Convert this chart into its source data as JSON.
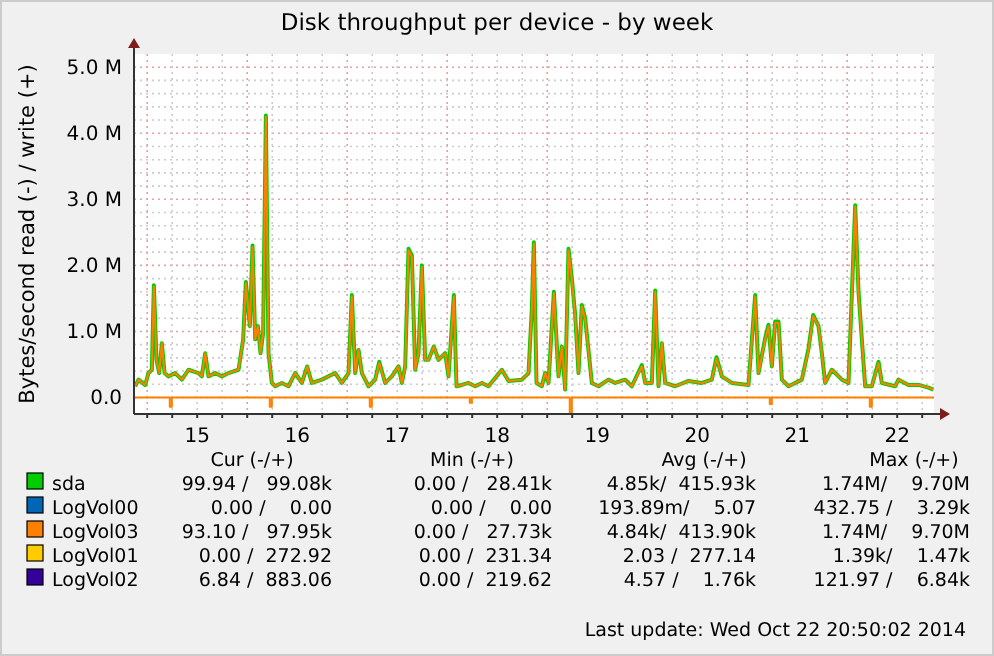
{
  "chart_data": {
    "type": "line",
    "title": "Disk throughput per device - by week",
    "ylabel": "Bytes/second read (-) / write (+)",
    "xlim": [
      "2014-10-14T20:50",
      "2014-10-22T20:50"
    ],
    "xticks": [
      {
        "value": "2014-10-15T00:00",
        "label": null
      },
      {
        "value": "2014-10-15T06:00",
        "label": null
      },
      {
        "value": "2014-10-15T12:00",
        "label": "15"
      },
      {
        "value": "2014-10-15T18:00",
        "label": null
      },
      {
        "value": "2014-10-16T00:00",
        "label": null
      },
      {
        "value": "2014-10-16T06:00",
        "label": null
      },
      {
        "value": "2014-10-16T12:00",
        "label": "16"
      },
      {
        "value": "2014-10-16T18:00",
        "label": null
      },
      {
        "value": "2014-10-17T00:00",
        "label": null
      },
      {
        "value": "2014-10-17T06:00",
        "label": null
      },
      {
        "value": "2014-10-17T12:00",
        "label": "17"
      },
      {
        "value": "2014-10-17T18:00",
        "label": null
      },
      {
        "value": "2014-10-18T00:00",
        "label": null
      },
      {
        "value": "2014-10-18T06:00",
        "label": null
      },
      {
        "value": "2014-10-18T12:00",
        "label": "18"
      },
      {
        "value": "2014-10-18T18:00",
        "label": null
      },
      {
        "value": "2014-10-19T00:00",
        "label": null
      },
      {
        "value": "2014-10-19T06:00",
        "label": null
      },
      {
        "value": "2014-10-19T12:00",
        "label": "19"
      },
      {
        "value": "2014-10-19T18:00",
        "label": null
      },
      {
        "value": "2014-10-20T00:00",
        "label": null
      },
      {
        "value": "2014-10-20T06:00",
        "label": null
      },
      {
        "value": "2014-10-20T12:00",
        "label": "20"
      },
      {
        "value": "2014-10-20T18:00",
        "label": null
      },
      {
        "value": "2014-10-21T00:00",
        "label": null
      },
      {
        "value": "2014-10-21T06:00",
        "label": null
      },
      {
        "value": "2014-10-21T12:00",
        "label": "21"
      },
      {
        "value": "2014-10-21T18:00",
        "label": null
      },
      {
        "value": "2014-10-22T00:00",
        "label": null
      },
      {
        "value": "2014-10-22T06:00",
        "label": null
      },
      {
        "value": "2014-10-22T12:00",
        "label": "22"
      },
      {
        "value": "2014-10-22T18:00",
        "label": null
      }
    ],
    "ylim": [
      -0.25,
      5.2
    ],
    "yticks": [
      {
        "value": 0,
        "label": "0.0"
      },
      {
        "value": 0.2,
        "label": null
      },
      {
        "value": 0.4,
        "label": null
      },
      {
        "value": 0.6,
        "label": null
      },
      {
        "value": 0.8,
        "label": null
      },
      {
        "value": 1,
        "label": "1.0 M"
      },
      {
        "value": 1.2,
        "label": null
      },
      {
        "value": 1.4,
        "label": null
      },
      {
        "value": 1.6,
        "label": null
      },
      {
        "value": 1.8,
        "label": null
      },
      {
        "value": 2,
        "label": "2.0 M"
      },
      {
        "value": 2.2,
        "label": null
      },
      {
        "value": 2.4,
        "label": null
      },
      {
        "value": 2.6,
        "label": null
      },
      {
        "value": 2.8,
        "label": null
      },
      {
        "value": 3,
        "label": "3.0 M"
      },
      {
        "value": 3.2,
        "label": null
      },
      {
        "value": 3.4,
        "label": null
      },
      {
        "value": 3.6,
        "label": null
      },
      {
        "value": 3.8,
        "label": null
      },
      {
        "value": 4,
        "label": "4.0 M"
      },
      {
        "value": 4.2,
        "label": null
      },
      {
        "value": 4.4,
        "label": null
      },
      {
        "value": 4.6,
        "label": null
      },
      {
        "value": 4.8,
        "label": null
      },
      {
        "value": 5,
        "label": "5.0 M"
      }
    ],
    "grid": true,
    "legend": "bottom",
    "series": [
      {
        "name": "sda",
        "color": "#00cc00",
        "x": [
          "2014-10-14T21:07",
          "2014-10-14T21:55",
          "2014-10-14T23:31",
          "2014-10-15T00:19",
          "2014-10-15T01:07",
          "2014-10-15T01:36",
          "2014-10-15T02:14",
          "2014-10-15T02:53",
          "2014-10-15T03:31",
          "2014-10-15T04:10",
          "2014-10-15T05:07",
          "2014-10-15T06:43",
          "2014-10-15T08:19",
          "2014-10-15T09:55",
          "2014-10-15T12:19",
          "2014-10-15T13:07",
          "2014-10-15T13:55",
          "2014-10-15T14:43",
          "2014-10-15T16:19",
          "2014-10-15T17:55",
          "2014-10-15T19:31",
          "2014-10-15T21:55",
          "2014-10-15T23:02",
          "2014-10-15T23:41",
          "2014-10-16T00:38",
          "2014-10-16T01:17",
          "2014-10-16T01:55",
          "2014-10-16T02:34",
          "2014-10-16T03:12",
          "2014-10-16T03:50",
          "2014-10-16T04:29",
          "2014-10-16T05:07",
          "2014-10-16T05:55",
          "2014-10-16T06:43",
          "2014-10-16T08:19",
          "2014-10-16T09:55",
          "2014-10-16T11:31",
          "2014-10-16T13:07",
          "2014-10-16T14:24",
          "2014-10-16T15:31",
          "2014-10-16T17:55",
          "2014-10-16T21:07",
          "2014-10-16T22:43",
          "2014-10-17T00:19",
          "2014-10-17T01:07",
          "2014-10-17T01:55",
          "2014-10-17T02:43",
          "2014-10-17T03:31",
          "2014-10-17T05:07",
          "2014-10-17T06:43",
          "2014-10-17T07:41",
          "2014-10-17T09:07",
          "2014-10-17T10:43",
          "2014-10-17T12:19",
          "2014-10-17T13:07",
          "2014-10-17T13:55",
          "2014-10-17T14:43",
          "2014-10-17T15:31",
          "2014-10-17T16:19",
          "2014-10-17T17:07",
          "2014-10-17T17:55",
          "2014-10-17T18:43",
          "2014-10-17T19:31",
          "2014-10-17T20:48",
          "2014-10-17T21:55",
          "2014-10-17T23:31",
          "2014-10-18T00:19",
          "2014-10-18T01:36",
          "2014-10-18T02:14",
          "2014-10-18T03:31",
          "2014-10-18T05:07",
          "2014-10-18T06:43",
          "2014-10-18T08:19",
          "2014-10-18T09:55",
          "2014-10-18T13:07",
          "2014-10-18T14:43",
          "2014-10-18T17:55",
          "2014-10-18T19:31",
          "2014-10-18T20:19",
          "2014-10-18T20:48",
          "2014-10-18T21:26",
          "2014-10-18T22:43",
          "2014-10-18T23:31",
          "2014-10-19T00:19",
          "2014-10-19T01:36",
          "2014-10-19T02:43",
          "2014-10-19T03:31",
          "2014-10-19T04:19",
          "2014-10-19T05:07",
          "2014-10-19T05:55",
          "2014-10-19T06:43",
          "2014-10-19T07:31",
          "2014-10-19T08:19",
          "2014-10-19T09:07",
          "2014-10-19T10:43",
          "2014-10-19T12:19",
          "2014-10-19T14:43",
          "2014-10-19T16:19",
          "2014-10-19T18:43",
          "2014-10-19T20:19",
          "2014-10-19T22:43",
          "2014-10-19T23:31",
          "2014-10-20T01:07",
          "2014-10-20T01:55",
          "2014-10-20T02:43",
          "2014-10-20T03:31",
          "2014-10-20T04:19",
          "2014-10-20T06:43",
          "2014-10-20T09:55",
          "2014-10-20T13:07",
          "2014-10-20T15:31",
          "2014-10-20T16:38",
          "2014-10-20T17:55",
          "2014-10-20T20:19",
          "2014-10-21T00:19",
          "2014-10-21T01:55",
          "2014-10-21T02:43",
          "2014-10-21T04:19",
          "2014-10-21T05:07",
          "2014-10-21T05:55",
          "2014-10-21T06:43",
          "2014-10-21T07:31",
          "2014-10-21T08:19",
          "2014-10-21T09:55",
          "2014-10-21T13:07",
          "2014-10-21T14:43",
          "2014-10-21T15:50",
          "2014-10-21T17:07",
          "2014-10-21T17:55",
          "2014-10-21T18:43",
          "2014-10-21T20:19",
          "2014-10-21T22:43",
          "2014-10-22T00:19",
          "2014-10-22T01:55",
          "2014-10-22T02:43",
          "2014-10-22T03:31",
          "2014-10-22T04:19",
          "2014-10-22T05:55",
          "2014-10-22T07:31",
          "2014-10-22T08:19",
          "2014-10-22T11:31",
          "2014-10-22T12:19",
          "2014-10-22T14:43",
          "2014-10-22T17:07",
          "2014-10-22T19:31",
          "2014-10-22T20:40"
        ],
        "values": [
          0.17,
          0.27,
          0.19,
          0.37,
          0.42,
          1.7,
          0.57,
          0.37,
          0.82,
          0.37,
          0.32,
          0.37,
          0.27,
          0.42,
          0.37,
          0.32,
          0.67,
          0.32,
          0.37,
          0.32,
          0.37,
          0.42,
          0.88,
          1.75,
          1.08,
          2.3,
          0.88,
          1.08,
          0.67,
          0.98,
          4.27,
          0.67,
          0.22,
          0.17,
          0.22,
          0.17,
          0.37,
          0.22,
          0.47,
          0.22,
          0.27,
          0.37,
          0.22,
          0.37,
          1.55,
          0.37,
          0.72,
          0.37,
          0.17,
          0.27,
          0.54,
          0.22,
          0.32,
          0.47,
          0.22,
          0.47,
          2.25,
          2.15,
          0.42,
          0.67,
          2.0,
          0.57,
          0.57,
          0.77,
          0.57,
          0.67,
          0.32,
          1.55,
          0.17,
          0.19,
          0.22,
          0.17,
          0.22,
          0.17,
          0.42,
          0.25,
          0.27,
          0.37,
          1.35,
          2.35,
          0.22,
          0.17,
          0.37,
          0.22,
          1.6,
          0.32,
          0.77,
          0.12,
          2.25,
          1.8,
          1.25,
          0.37,
          1.4,
          1.2,
          0.22,
          0.17,
          0.27,
          0.22,
          0.27,
          0.17,
          0.49,
          0.22,
          0.22,
          1.62,
          0.17,
          0.82,
          0.22,
          0.17,
          0.25,
          0.22,
          0.27,
          0.61,
          0.32,
          0.22,
          0.19,
          1.55,
          0.37,
          0.9,
          1.1,
          0.47,
          1.15,
          1.15,
          0.27,
          0.17,
          0.27,
          0.74,
          1.25,
          1.08,
          0.67,
          0.22,
          0.42,
          0.27,
          0.22,
          2.91,
          1.6,
          0.88,
          0.17,
          0.17,
          0.54,
          0.22,
          0.17,
          0.27,
          0.19,
          0.19,
          0.15,
          0.12
        ]
      },
      {
        "name": "LogVol00",
        "color": "#0066b3"
      },
      {
        "name": "LogVol03",
        "color": "#ff8000",
        "x": [
          "2014-10-14T21:07",
          "2014-10-14T21:55",
          "2014-10-14T23:31",
          "2014-10-15T00:19",
          "2014-10-15T01:07",
          "2014-10-15T01:36",
          "2014-10-15T02:14",
          "2014-10-15T02:53",
          "2014-10-15T03:31",
          "2014-10-15T04:10",
          "2014-10-15T05:07",
          "2014-10-15T06:43",
          "2014-10-15T08:19",
          "2014-10-15T09:55",
          "2014-10-15T12:19",
          "2014-10-15T13:07",
          "2014-10-15T13:55",
          "2014-10-15T14:43",
          "2014-10-15T16:19",
          "2014-10-15T17:55",
          "2014-10-15T19:31",
          "2014-10-15T21:55",
          "2014-10-15T23:02",
          "2014-10-15T23:41",
          "2014-10-16T00:38",
          "2014-10-16T01:17",
          "2014-10-16T01:55",
          "2014-10-16T02:34",
          "2014-10-16T03:12",
          "2014-10-16T03:50",
          "2014-10-16T04:29",
          "2014-10-16T05:07",
          "2014-10-16T05:55",
          "2014-10-16T06:43",
          "2014-10-16T08:19",
          "2014-10-16T09:55",
          "2014-10-16T11:31",
          "2014-10-16T13:07",
          "2014-10-16T14:24",
          "2014-10-16T15:31",
          "2014-10-16T17:55",
          "2014-10-16T21:07",
          "2014-10-16T22:43",
          "2014-10-17T00:19",
          "2014-10-17T01:07",
          "2014-10-17T01:55",
          "2014-10-17T02:43",
          "2014-10-17T03:31",
          "2014-10-17T05:07",
          "2014-10-17T06:43",
          "2014-10-17T07:41",
          "2014-10-17T09:07",
          "2014-10-17T10:43",
          "2014-10-17T12:19",
          "2014-10-17T13:07",
          "2014-10-17T13:55",
          "2014-10-17T14:43",
          "2014-10-17T15:31",
          "2014-10-17T16:19",
          "2014-10-17T17:07",
          "2014-10-17T17:55",
          "2014-10-17T18:43",
          "2014-10-17T19:31",
          "2014-10-17T20:48",
          "2014-10-17T21:55",
          "2014-10-17T23:31",
          "2014-10-18T00:19",
          "2014-10-18T01:36",
          "2014-10-18T02:14",
          "2014-10-18T03:31",
          "2014-10-18T05:07",
          "2014-10-18T06:43",
          "2014-10-18T08:19",
          "2014-10-18T09:55",
          "2014-10-18T13:07",
          "2014-10-18T14:43",
          "2014-10-18T17:55",
          "2014-10-18T19:31",
          "2014-10-18T20:19",
          "2014-10-18T20:48",
          "2014-10-18T21:26",
          "2014-10-18T22:43",
          "2014-10-18T23:31",
          "2014-10-19T00:19",
          "2014-10-19T01:36",
          "2014-10-19T02:43",
          "2014-10-19T03:31",
          "2014-10-19T04:19",
          "2014-10-19T05:07",
          "2014-10-19T05:55",
          "2014-10-19T06:43",
          "2014-10-19T07:31",
          "2014-10-19T08:19",
          "2014-10-19T09:07",
          "2014-10-19T10:43",
          "2014-10-19T12:19",
          "2014-10-19T14:43",
          "2014-10-19T16:19",
          "2014-10-19T18:43",
          "2014-10-19T20:19",
          "2014-10-19T22:43",
          "2014-10-19T23:31",
          "2014-10-20T01:07",
          "2014-10-20T01:55",
          "2014-10-20T02:43",
          "2014-10-20T03:31",
          "2014-10-20T04:19",
          "2014-10-20T06:43",
          "2014-10-20T09:55",
          "2014-10-20T13:07",
          "2014-10-20T15:31",
          "2014-10-20T16:38",
          "2014-10-20T17:55",
          "2014-10-20T20:19",
          "2014-10-21T00:19",
          "2014-10-21T01:55",
          "2014-10-21T02:43",
          "2014-10-21T04:19",
          "2014-10-21T05:07",
          "2014-10-21T05:55",
          "2014-10-21T06:43",
          "2014-10-21T07:31",
          "2014-10-21T08:19",
          "2014-10-21T09:55",
          "2014-10-21T13:07",
          "2014-10-21T14:43",
          "2014-10-21T15:50",
          "2014-10-21T17:07",
          "2014-10-21T17:55",
          "2014-10-21T18:43",
          "2014-10-21T20:19",
          "2014-10-21T22:43",
          "2014-10-22T00:19",
          "2014-10-22T01:55",
          "2014-10-22T02:43",
          "2014-10-22T03:31",
          "2014-10-22T04:19",
          "2014-10-22T05:55",
          "2014-10-22T07:31",
          "2014-10-22T08:19",
          "2014-10-22T11:31",
          "2014-10-22T12:19",
          "2014-10-22T14:43",
          "2014-10-22T17:07",
          "2014-10-22T19:31",
          "2014-10-22T20:40"
        ],
        "values": [
          0.17,
          0.27,
          0.19,
          0.37,
          0.42,
          1.68,
          0.57,
          0.37,
          0.82,
          0.37,
          0.32,
          0.37,
          0.27,
          0.42,
          0.37,
          0.32,
          0.67,
          0.32,
          0.37,
          0.32,
          0.37,
          0.42,
          0.88,
          1.73,
          1.08,
          2.28,
          0.88,
          1.08,
          0.67,
          0.98,
          4.25,
          0.67,
          0.22,
          0.17,
          0.22,
          0.17,
          0.37,
          0.22,
          0.47,
          0.22,
          0.27,
          0.37,
          0.22,
          0.37,
          1.53,
          0.37,
          0.72,
          0.37,
          0.17,
          0.27,
          0.52,
          0.22,
          0.32,
          0.47,
          0.22,
          0.47,
          2.23,
          2.13,
          0.42,
          0.67,
          1.98,
          0.57,
          0.57,
          0.77,
          0.57,
          0.67,
          0.32,
          1.53,
          0.17,
          0.19,
          0.22,
          0.17,
          0.22,
          0.17,
          0.42,
          0.25,
          0.27,
          0.37,
          1.33,
          2.33,
          0.22,
          0.17,
          0.37,
          0.22,
          1.58,
          0.32,
          0.77,
          0.12,
          2.23,
          1.78,
          1.23,
          0.37,
          1.38,
          1.18,
          0.22,
          0.17,
          0.27,
          0.22,
          0.27,
          0.17,
          0.47,
          0.22,
          0.22,
          1.6,
          0.17,
          0.82,
          0.22,
          0.17,
          0.25,
          0.22,
          0.27,
          0.59,
          0.32,
          0.22,
          0.19,
          1.53,
          0.37,
          0.88,
          1.08,
          0.47,
          1.13,
          1.13,
          0.27,
          0.17,
          0.27,
          0.72,
          1.23,
          1.08,
          0.67,
          0.22,
          0.42,
          0.27,
          0.22,
          2.89,
          1.58,
          0.88,
          0.17,
          0.17,
          0.52,
          0.22,
          0.17,
          0.27,
          0.19,
          0.19,
          0.15,
          0.12
        ]
      },
      {
        "name": "LogVol01",
        "color": "#ffcc00"
      },
      {
        "name": "LogVol02",
        "color": "#330099"
      },
      {
        "type": "step",
        "color": "#ff8000",
        "x": [
          "2014-10-14T20:50",
          "2014-10-15T05:25",
          "2014-10-15T05:55",
          "2014-10-16T05:25",
          "2014-10-16T05:55",
          "2014-10-17T05:25",
          "2014-10-17T05:55",
          "2014-10-18T05:25",
          "2014-10-18T05:55",
          "2014-10-19T05:25",
          "2014-10-19T05:55",
          "2014-10-21T05:25",
          "2014-10-21T05:55",
          "2014-10-22T05:25",
          "2014-10-22T05:55",
          "2014-10-22T20:50"
        ],
        "values": [
          0,
          -0.14,
          0,
          -0.14,
          0,
          -0.14,
          0,
          -0.08,
          0,
          -0.24,
          0,
          -0.1,
          0,
          -0.14,
          0,
          0
        ]
      }
    ],
    "annotations": [
      "Cur (-/+)",
      "Min (-/+)",
      "Avg (-/+)",
      "Max (-/+)",
      "99.94 /   99.08k",
      "0.00 /   28.41k",
      "4.85k/  415.93k",
      "1.74M/    9.70M",
      "0.00 /    0.00",
      "0.00 /    0.00",
      "193.89m/    5.07",
      "432.75 /    3.29k",
      "93.10 /   97.95k",
      "0.00 /   27.73k",
      "4.84k/  413.90k",
      "1.74M/    9.70M",
      "0.00 /  272.92",
      "0.00 /  231.34",
      "2.03 /  277.14",
      "1.39k/    1.47k",
      "6.84 /  883.06",
      "0.00 /  219.62",
      "4.57 /    1.76k",
      "121.97 /    6.84k",
      "Last update: Wed Oct 22 20:50:02 2014"
    ]
  }
}
